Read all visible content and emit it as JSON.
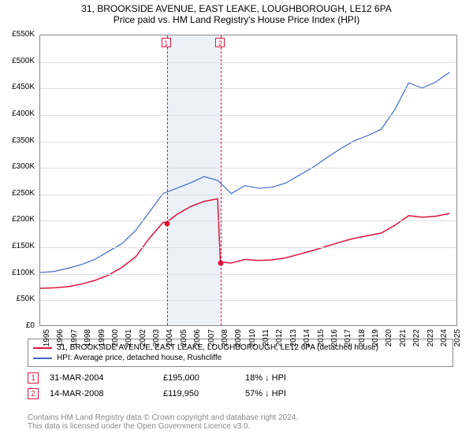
{
  "title": "31, BROOKSIDE AVENUE, EAST LEAKE, LOUGHBOROUGH, LE12 6PA",
  "subtitle": "Price paid vs. HM Land Registry's House Price Index (HPI)",
  "chart": {
    "type": "line",
    "background_color": "#ffffff",
    "grid_color": "#dddddd",
    "border_color": "#888888",
    "x_years": [
      "1995",
      "1996",
      "1997",
      "1998",
      "1999",
      "2000",
      "2001",
      "2002",
      "2003",
      "2004",
      "2005",
      "2006",
      "2007",
      "2008",
      "2009",
      "2010",
      "2011",
      "2012",
      "2013",
      "2014",
      "2015",
      "2016",
      "2017",
      "2018",
      "2019",
      "2020",
      "2021",
      "2022",
      "2023",
      "2024",
      "2025"
    ],
    "y_ticks": [
      0,
      50000,
      100000,
      150000,
      200000,
      250000,
      300000,
      350000,
      400000,
      450000,
      500000,
      550000
    ],
    "y_tick_labels": [
      "£0",
      "£50K",
      "£100K",
      "£150K",
      "£200K",
      "£250K",
      "£300K",
      "£350K",
      "£400K",
      "£450K",
      "£500K",
      "£550K"
    ],
    "ylim": [
      0,
      550000
    ],
    "xlim_year": [
      1995,
      2025.5
    ],
    "label_fontsize": 10,
    "series": [
      {
        "name": "property",
        "color": "#dc143c",
        "line_width": 1.5,
        "data": [
          [
            1995,
            70000
          ],
          [
            1996,
            71000
          ],
          [
            1997,
            73000
          ],
          [
            1998,
            78000
          ],
          [
            1999,
            85000
          ],
          [
            2000,
            95000
          ],
          [
            2001,
            110000
          ],
          [
            2002,
            130000
          ],
          [
            2003,
            165000
          ],
          [
            2004,
            195000
          ],
          [
            2004.25,
            195000
          ],
          [
            2005,
            210000
          ],
          [
            2006,
            225000
          ],
          [
            2007,
            235000
          ],
          [
            2008,
            240000
          ],
          [
            2008.2,
            119950
          ],
          [
            2009,
            118000
          ],
          [
            2010,
            125000
          ],
          [
            2011,
            123000
          ],
          [
            2012,
            124000
          ],
          [
            2013,
            128000
          ],
          [
            2014,
            135000
          ],
          [
            2015,
            142000
          ],
          [
            2016,
            150000
          ],
          [
            2017,
            158000
          ],
          [
            2018,
            165000
          ],
          [
            2019,
            170000
          ],
          [
            2020,
            175000
          ],
          [
            2021,
            190000
          ],
          [
            2022,
            208000
          ],
          [
            2023,
            205000
          ],
          [
            2024,
            207000
          ],
          [
            2025,
            212000
          ]
        ]
      },
      {
        "name": "hpi",
        "color": "#4169c8",
        "line_width": 1.2,
        "data": [
          [
            1995,
            100000
          ],
          [
            1996,
            102000
          ],
          [
            1997,
            108000
          ],
          [
            1998,
            115000
          ],
          [
            1999,
            125000
          ],
          [
            2000,
            140000
          ],
          [
            2001,
            155000
          ],
          [
            2002,
            180000
          ],
          [
            2003,
            215000
          ],
          [
            2004,
            250000
          ],
          [
            2005,
            260000
          ],
          [
            2006,
            270000
          ],
          [
            2007,
            282000
          ],
          [
            2008,
            275000
          ],
          [
            2009,
            250000
          ],
          [
            2010,
            265000
          ],
          [
            2011,
            260000
          ],
          [
            2012,
            262000
          ],
          [
            2013,
            270000
          ],
          [
            2014,
            285000
          ],
          [
            2015,
            300000
          ],
          [
            2016,
            318000
          ],
          [
            2017,
            335000
          ],
          [
            2018,
            350000
          ],
          [
            2019,
            360000
          ],
          [
            2020,
            372000
          ],
          [
            2021,
            410000
          ],
          [
            2022,
            460000
          ],
          [
            2023,
            450000
          ],
          [
            2024,
            462000
          ],
          [
            2025,
            480000
          ]
        ]
      }
    ],
    "event_markers": [
      {
        "num": "1",
        "year": 2004.25,
        "price": 195000,
        "color": "#dc143c"
      },
      {
        "num": "2",
        "year": 2008.2,
        "price": 119950,
        "color": "#dc143c"
      }
    ],
    "shade_region": {
      "from_year": 2004.25,
      "to_year": 2008.2,
      "color": "rgba(100,140,200,0.12)"
    }
  },
  "legend": {
    "items": [
      {
        "label": "31, BROOKSIDE AVENUE, EAST LEAKE, LOUGHBOROUGH, LE12 6PA (detached house)",
        "color": "#dc143c"
      },
      {
        "label": "HPI: Average price, detached house, Rushcliffe",
        "color": "#4169c8"
      }
    ]
  },
  "annotations": [
    {
      "num": "1",
      "color": "#dc143c",
      "date": "31-MAR-2004",
      "price": "£195,000",
      "pct": "18% ↓ HPI"
    },
    {
      "num": "2",
      "color": "#dc143c",
      "date": "14-MAR-2008",
      "price": "£119,950",
      "pct": "57% ↓ HPI"
    }
  ],
  "footer": {
    "line1": "Contains HM Land Registry data © Crown copyright and database right 2024.",
    "line2": "This data is licensed under the Open Government Licence v3.0."
  }
}
